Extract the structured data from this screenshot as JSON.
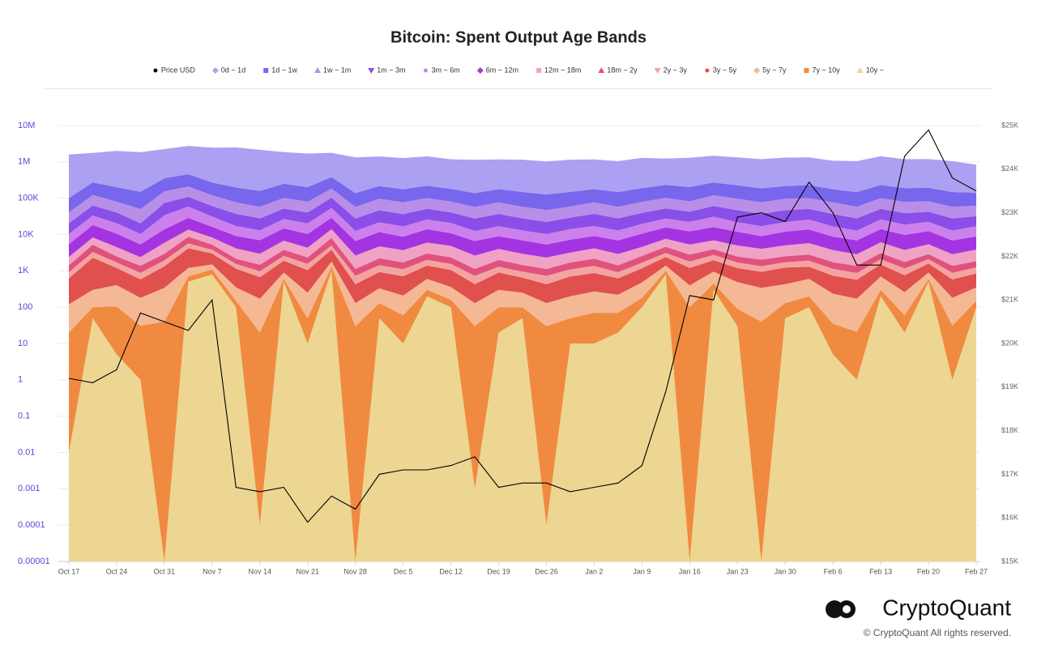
{
  "chart_data": {
    "type": "area",
    "title": "Bitcoin: Spent Output Age Bands",
    "categories": [
      "Oct 17",
      null,
      "Oct 24",
      null,
      "Oct 31",
      null,
      "Nov 7",
      null,
      "Nov 14",
      null,
      "Nov 21",
      null,
      "Nov 28",
      null,
      "Dec 5",
      null,
      "Dec 12",
      null,
      "Dec 19",
      null,
      "Dec 26",
      null,
      "Jan 2",
      null,
      "Jan 9",
      null,
      "Jan 16",
      null,
      "Jan 23",
      null,
      "Jan 30",
      null,
      "Feb 6",
      null,
      "Feb 13",
      null,
      "Feb 20",
      null,
      "Feb 27"
    ],
    "log_scale": true,
    "grid": true,
    "ylim": [
      1e-05,
      10000000
    ],
    "yticks": [
      1e-05,
      0.0001,
      0.001,
      0.01,
      0.1,
      1,
      10,
      100,
      {
        "value": 1000,
        "label": "1K"
      },
      {
        "value": 10000,
        "label": "10K"
      },
      {
        "value": 100000,
        "label": "100K"
      },
      {
        "value": 1000000,
        "label": "1M"
      },
      {
        "value": 10000000,
        "label": "10M"
      }
    ],
    "y2lim": [
      15000,
      25000
    ],
    "y2ticks": [
      {
        "value": 15000,
        "label": "$15K"
      },
      {
        "value": 16000,
        "label": "$16K"
      },
      {
        "value": 17000,
        "label": "$17K"
      },
      {
        "value": 18000,
        "label": "$18K"
      },
      {
        "value": 19000,
        "label": "$19K"
      },
      {
        "value": 20000,
        "label": "$20K"
      },
      {
        "value": 21000,
        "label": "$21K"
      },
      {
        "value": 22000,
        "label": "$22K"
      },
      {
        "value": 23000,
        "label": "$23K"
      },
      {
        "value": 24000,
        "label": "$24K"
      },
      {
        "value": 25000,
        "label": "$25K"
      }
    ],
    "series": [
      {
        "name": "Price USD",
        "type": "line",
        "axis": "y2",
        "color": "#000000",
        "marker": "circle",
        "values": [
          19200,
          19100,
          19400,
          20700,
          20500,
          20300,
          21000,
          16700,
          16600,
          16700,
          15900,
          16500,
          16200,
          17000,
          17100,
          17100,
          17200,
          17400,
          16700,
          16800,
          16800,
          16600,
          16700,
          16800,
          17200,
          18900,
          21100,
          21000,
          22900,
          23000,
          22800,
          23700,
          23000,
          21800,
          21800,
          24300,
          24900,
          23800,
          23500
        ]
      },
      {
        "name": "0d ~ 1d",
        "type": "area",
        "color": "#aba0f2",
        "marker": "diamond",
        "values": [
          1500000,
          1500000,
          1800000,
          1700000,
          1900000,
          2300000,
          2200000,
          2300000,
          2000000,
          1600000,
          1500000,
          1400000,
          1200000,
          1200000,
          1100000,
          1200000,
          1000000,
          1000000,
          1000000,
          1000000,
          900000,
          1000000,
          1000000,
          900000,
          1100000,
          1000000,
          1100000,
          1200000,
          1100000,
          1000000,
          1100000,
          1100000,
          900000,
          900000,
          1200000,
          1000000,
          1000000,
          900000,
          700000
        ]
      },
      {
        "name": "1d ~ 1w",
        "type": "area",
        "color": "#7866ec",
        "marker": "square",
        "values": [
          60000,
          150000,
          120000,
          100000,
          200000,
          250000,
          150000,
          120000,
          100000,
          150000,
          120000,
          200000,
          80000,
          120000,
          100000,
          120000,
          100000,
          80000,
          100000,
          90000,
          80000,
          90000,
          100000,
          90000,
          110000,
          130000,
          120000,
          150000,
          130000,
          110000,
          120000,
          130000,
          100000,
          90000,
          130000,
          110000,
          110000,
          90000,
          80000
        ]
      },
      {
        "name": "1w ~ 1m",
        "type": "area",
        "color": "#b88ee8",
        "marker": "triangle",
        "values": [
          20000,
          60000,
          40000,
          30000,
          80000,
          100000,
          60000,
          40000,
          30000,
          50000,
          40000,
          80000,
          30000,
          50000,
          40000,
          50000,
          40000,
          30000,
          40000,
          30000,
          25000,
          30000,
          40000,
          30000,
          40000,
          50000,
          40000,
          60000,
          50000,
          40000,
          50000,
          50000,
          40000,
          30000,
          50000,
          40000,
          40000,
          30000,
          30000
        ]
      },
      {
        "name": "1m ~ 3m",
        "type": "area",
        "color": "#8a4fe8",
        "marker": "triangle-down",
        "values": [
          10000,
          30000,
          20000,
          10000,
          40000,
          50000,
          30000,
          20000,
          15000,
          25000,
          20000,
          50000,
          15000,
          25000,
          20000,
          25000,
          20000,
          15000,
          20000,
          15000,
          12000,
          15000,
          20000,
          15000,
          20000,
          25000,
          20000,
          30000,
          25000,
          20000,
          25000,
          25000,
          20000,
          15000,
          25000,
          20000,
          20000,
          15000,
          15000
        ]
      },
      {
        "name": "3m ~ 6m",
        "type": "area",
        "color": "#cc80ec",
        "marker": "circle",
        "values": [
          5000,
          15000,
          10000,
          5000,
          20000,
          30000,
          15000,
          8000,
          6000,
          12000,
          10000,
          25000,
          6000,
          10000,
          8000,
          12000,
          10000,
          6000,
          8000,
          6000,
          5000,
          7000,
          8000,
          6000,
          9000,
          12000,
          10000,
          15000,
          10000,
          8000,
          10000,
          12000,
          8000,
          6000,
          12000,
          9000,
          10000,
          6000,
          8000
        ]
      },
      {
        "name": "6m ~ 12m",
        "type": "area",
        "color": "#a434e2",
        "marker": "diamond",
        "values": [
          3000,
          10000,
          6000,
          3000,
          8000,
          15000,
          8000,
          5000,
          4000,
          8000,
          6000,
          15000,
          4000,
          7000,
          5000,
          8000,
          6000,
          4000,
          5000,
          4000,
          3000,
          4000,
          5000,
          4000,
          6000,
          8000,
          7000,
          9000,
          7000,
          5000,
          7000,
          8000,
          5000,
          4000,
          8000,
          6000,
          7000,
          4000,
          5000
        ]
      },
      {
        "name": "12m ~ 18m",
        "type": "area",
        "color": "#f0a2c4",
        "marker": "square",
        "values": [
          1000,
          3000,
          2000,
          1000,
          3000,
          5000,
          3000,
          2000,
          1500,
          3000,
          2000,
          6000,
          1500,
          2500,
          2000,
          3000,
          2500,
          1500,
          2000,
          1500,
          1200,
          1500,
          2000,
          1500,
          2000,
          3000,
          2500,
          3000,
          2500,
          2000,
          2500,
          3000,
          2000,
          1500,
          3000,
          2000,
          2500,
          1500,
          2000
        ]
      },
      {
        "name": "18m ~ 2y",
        "type": "area",
        "color": "#e0527e",
        "marker": "triangle",
        "values": [
          500,
          2000,
          800,
          500,
          1000,
          3000,
          1500,
          600,
          500,
          1200,
          800,
          3000,
          400,
          800,
          600,
          1000,
          800,
          400,
          700,
          500,
          400,
          600,
          800,
          500,
          900,
          1500,
          1000,
          1200,
          800,
          700,
          800,
          900,
          600,
          500,
          1000,
          600,
          800,
          500,
          600
        ]
      },
      {
        "name": "2y ~ 3y",
        "type": "area",
        "color": "#f4a4a0",
        "marker": "triangle-down",
        "values": [
          300,
          1000,
          500,
          300,
          600,
          1500,
          800,
          400,
          300,
          700,
          500,
          1200,
          300,
          500,
          400,
          600,
          500,
          300,
          400,
          300,
          300,
          400,
          500,
          300,
          500,
          700,
          600,
          800,
          500,
          400,
          500,
          600,
          400,
          300,
          600,
          400,
          500,
          300,
          400
        ]
      },
      {
        "name": "3y ~ 5y",
        "type": "area",
        "color": "#e0504e",
        "marker": "circle",
        "values": [
          500,
          2000,
          800,
          400,
          1000,
          3000,
          1500,
          800,
          500,
          1000,
          800,
          2000,
          300,
          600,
          500,
          800,
          700,
          300,
          600,
          400,
          300,
          500,
          600,
          400,
          700,
          1000,
          800,
          1000,
          700,
          600,
          800,
          700,
          500,
          400,
          800,
          500,
          700,
          400,
          500
        ]
      },
      {
        "name": "5y ~ 7y",
        "type": "area",
        "color": "#f4b894",
        "marker": "diamond",
        "values": [
          100,
          200,
          300,
          150,
          300,
          500,
          400,
          200,
          150,
          300,
          200,
          500,
          100,
          200,
          150,
          300,
          200,
          100,
          200,
          150,
          100,
          150,
          200,
          150,
          300,
          400,
          300,
          500,
          400,
          300,
          300,
          400,
          200,
          150,
          400,
          200,
          300,
          150,
          200
        ]
      },
      {
        "name": "7y ~ 10y",
        "type": "area",
        "color": "#f08a40",
        "marker": "square",
        "values": [
          20,
          50,
          100,
          30,
          40,
          200,
          300,
          50,
          20,
          100,
          40,
          300,
          30,
          80,
          50,
          100,
          60,
          30,
          80,
          50,
          30,
          40,
          60,
          50,
          80,
          200,
          100,
          150,
          60,
          40,
          80,
          100,
          30,
          20,
          100,
          40,
          100,
          30,
          50
        ]
      },
      {
        "name": "10y ~",
        "type": "area",
        "color": "#ecd692",
        "marker": "triangle",
        "values": [
          0.01,
          50,
          5,
          1,
          1e-05,
          500,
          800,
          100,
          0.0001,
          500,
          10,
          1000,
          1e-05,
          50,
          10,
          200,
          100,
          0.001,
          20,
          50,
          0.0001,
          10,
          10,
          20,
          100,
          800,
          1e-05,
          300,
          30,
          1e-05,
          50,
          100,
          5,
          1,
          200,
          20,
          500,
          1,
          100
        ]
      }
    ]
  },
  "branding": {
    "logo": "CryptoQuant",
    "copyright": "© CryptoQuant All rights reserved."
  }
}
